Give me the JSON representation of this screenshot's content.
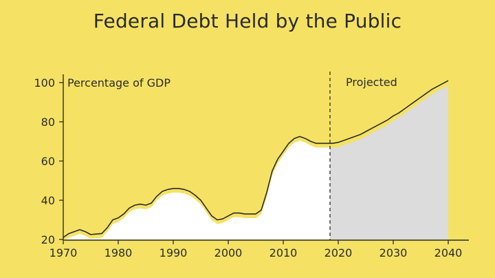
{
  "chart_data": {
    "type": "area",
    "title": "Federal Debt Held by the Public",
    "ylabel": "Percentage of GDP",
    "projection_label": "Projected",
    "projection_start": 2018.5,
    "xlim": [
      1970,
      2046
    ],
    "ylim": [
      20,
      102
    ],
    "x_ticks": [
      1970,
      1980,
      1990,
      2000,
      2010,
      2020,
      2030,
      2040
    ],
    "y_ticks": [
      20,
      40,
      60,
      80,
      100
    ],
    "series": [
      {
        "values": [
          [
            1970,
            21
          ],
          [
            1971,
            23
          ],
          [
            1972,
            24
          ],
          [
            1973,
            25
          ],
          [
            1974,
            24
          ],
          [
            1975,
            22.5
          ],
          [
            1976,
            22.8
          ],
          [
            1977,
            23
          ],
          [
            1978,
            26
          ],
          [
            1979,
            30
          ],
          [
            1980,
            31
          ],
          [
            1981,
            33
          ],
          [
            1982,
            36
          ],
          [
            1983,
            37.5
          ],
          [
            1984,
            38
          ],
          [
            1985,
            37.5
          ],
          [
            1986,
            38.5
          ],
          [
            1987,
            42
          ],
          [
            1988,
            44.5
          ],
          [
            1989,
            45.5
          ],
          [
            1990,
            46
          ],
          [
            1991,
            46
          ],
          [
            1992,
            45.5
          ],
          [
            1993,
            44.5
          ],
          [
            1994,
            42.5
          ],
          [
            1995,
            40
          ],
          [
            1996,
            36
          ],
          [
            1997,
            32
          ],
          [
            1998,
            30
          ],
          [
            1999,
            30.5
          ],
          [
            2000,
            32
          ],
          [
            2001,
            33.5
          ],
          [
            2002,
            33.5
          ],
          [
            2003,
            33
          ],
          [
            2004,
            33
          ],
          [
            2005,
            33
          ],
          [
            2006,
            35
          ],
          [
            2007,
            44
          ],
          [
            2008,
            55
          ],
          [
            2009,
            61
          ],
          [
            2010,
            65
          ],
          [
            2011,
            69
          ],
          [
            2012,
            71.5
          ],
          [
            2013,
            72.5
          ],
          [
            2014,
            71.5
          ],
          [
            2015,
            70
          ],
          [
            2016,
            69
          ],
          [
            2017,
            69
          ],
          [
            2018,
            69
          ]
        ],
        "projected": [
          [
            2018,
            69
          ],
          [
            2019,
            69
          ],
          [
            2020,
            69.5
          ],
          [
            2021,
            70.5
          ],
          [
            2022,
            71.5
          ],
          [
            2023,
            72.5
          ],
          [
            2024,
            73.5
          ],
          [
            2025,
            75
          ],
          [
            2026,
            76.5
          ],
          [
            2027,
            78
          ],
          [
            2028,
            79.5
          ],
          [
            2029,
            81
          ],
          [
            2030,
            83
          ],
          [
            2031,
            84.5
          ],
          [
            2032,
            86.5
          ],
          [
            2033,
            88.5
          ],
          [
            2034,
            90.5
          ],
          [
            2035,
            92.5
          ],
          [
            2036,
            94.5
          ],
          [
            2037,
            96.5
          ],
          [
            2038,
            98
          ],
          [
            2039,
            99.5
          ],
          [
            2040,
            101
          ]
        ]
      }
    ],
    "colors": {
      "background": "#f5e264",
      "historical_fill": "#ffffff",
      "projected_fill": "#dcdcdc",
      "line": "#2b2b2b"
    },
    "grid": false
  }
}
